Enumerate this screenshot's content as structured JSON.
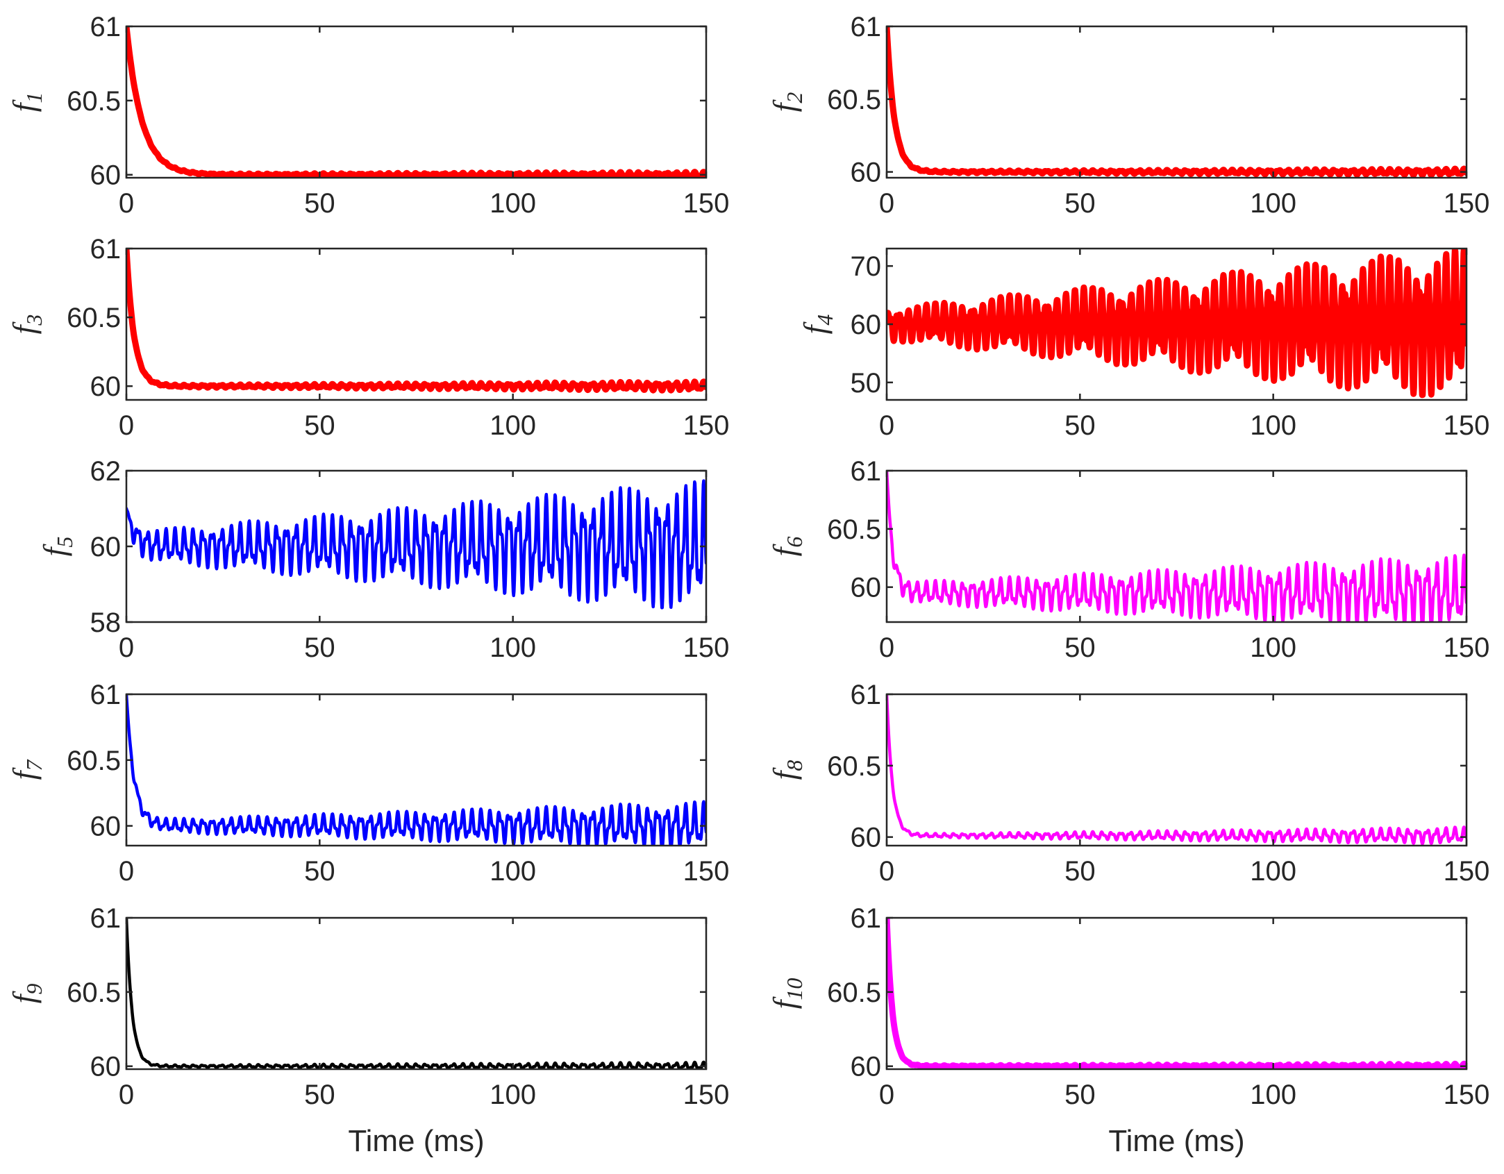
{
  "chart_data": [
    {
      "type": "line",
      "ylabel": "f",
      "ylabel_subscript": "1",
      "color": "#ff0000",
      "line": "thick",
      "xlim": [
        0,
        150
      ],
      "ylim": [
        59.98,
        61.0
      ],
      "xticks": [
        "0",
        "50",
        "100",
        "150"
      ],
      "yticks": [
        "60",
        "60.5",
        "61"
      ],
      "ytick_values": [
        60,
        60.5,
        61
      ],
      "xlabel": "",
      "signal": {
        "start": 61.0,
        "base": 60.0,
        "decay_ms": 4,
        "amp_start": 0.004,
        "amp_end": 0.018
      }
    },
    {
      "type": "line",
      "ylabel": "f",
      "ylabel_subscript": "2",
      "color": "#ff0000",
      "line": "thick",
      "xlim": [
        0,
        150
      ],
      "ylim": [
        59.96,
        61.0
      ],
      "xticks": [
        "0",
        "50",
        "100",
        "150"
      ],
      "yticks": [
        "60",
        "60.5",
        "61"
      ],
      "ytick_values": [
        60,
        60.5,
        61
      ],
      "xlabel": "",
      "signal": {
        "start": 61.0,
        "base": 60.0,
        "decay_ms": 2,
        "amp_start": 0.005,
        "amp_end": 0.02
      }
    },
    {
      "type": "line",
      "ylabel": "f",
      "ylabel_subscript": "3",
      "color": "#ff0000",
      "line": "thick",
      "xlim": [
        0,
        150
      ],
      "ylim": [
        59.9,
        61.0
      ],
      "xticks": [
        "0",
        "50",
        "100",
        "150"
      ],
      "yticks": [
        "60",
        "60.5",
        "61"
      ],
      "ytick_values": [
        60,
        60.5,
        61
      ],
      "xlabel": "",
      "signal": {
        "start": 61.0,
        "base": 60.0,
        "decay_ms": 2,
        "amp_start": 0.006,
        "amp_end": 0.03
      }
    },
    {
      "type": "line",
      "ylabel": "f",
      "ylabel_subscript": "4",
      "color": "#ff0000",
      "line": "thick",
      "xlim": [
        0,
        150
      ],
      "ylim": [
        47,
        73
      ],
      "xticks": [
        "0",
        "50",
        "100",
        "150"
      ],
      "yticks": [
        "50",
        "60",
        "70"
      ],
      "ytick_values": [
        50,
        60,
        70
      ],
      "xlabel": "",
      "signal": {
        "start": 60.0,
        "base": 60.0,
        "decay_ms": 0,
        "amp_start": 2.5,
        "amp_end": 12
      }
    },
    {
      "type": "line",
      "ylabel": "f",
      "ylabel_subscript": "5",
      "color": "#0000ff",
      "line": "thin",
      "xlim": [
        0,
        150
      ],
      "ylim": [
        58,
        62
      ],
      "xticks": [
        "0",
        "50",
        "100",
        "150"
      ],
      "yticks": [
        "58",
        "60",
        "62"
      ],
      "ytick_values": [
        58,
        60,
        62
      ],
      "xlabel": "",
      "signal": {
        "start": 61.0,
        "base": 60.0,
        "decay_ms": 2,
        "amp_start": 0.35,
        "amp_end": 1.6
      }
    },
    {
      "type": "line",
      "ylabel": "f",
      "ylabel_subscript": "6",
      "color": "#ff00ff",
      "line": "thin",
      "xlim": [
        0,
        150
      ],
      "ylim": [
        59.7,
        61.0
      ],
      "xticks": [
        "0",
        "50",
        "100",
        "150"
      ],
      "yticks": [
        "60",
        "60.5",
        "61"
      ],
      "ytick_values": [
        60,
        60.5,
        61
      ],
      "xlabel": "",
      "signal": {
        "start": 61.0,
        "base": 59.95,
        "decay_ms": 1.5,
        "amp_start": 0.08,
        "amp_end": 0.3
      }
    },
    {
      "type": "line",
      "ylabel": "f",
      "ylabel_subscript": "7",
      "color": "#0000ff",
      "line": "thin",
      "xlim": [
        0,
        150
      ],
      "ylim": [
        59.85,
        61.0
      ],
      "xticks": [
        "0",
        "50",
        "100",
        "150"
      ],
      "yticks": [
        "60",
        "60.5",
        "61"
      ],
      "ytick_values": [
        60,
        60.5,
        61
      ],
      "xlabel": "",
      "signal": {
        "start": 61.0,
        "base": 60.0,
        "decay_ms": 2,
        "amp_start": 0.04,
        "amp_end": 0.17
      }
    },
    {
      "type": "line",
      "ylabel": "f",
      "ylabel_subscript": "8",
      "color": "#ff00ff",
      "line": "thin",
      "xlim": [
        0,
        150
      ],
      "ylim": [
        59.94,
        61.0
      ],
      "xticks": [
        "0",
        "50",
        "100",
        "150"
      ],
      "yticks": [
        "60",
        "60.5",
        "61"
      ],
      "ytick_values": [
        60,
        60.5,
        61
      ],
      "xlabel": "",
      "signal": {
        "start": 61.0,
        "base": 60.01,
        "decay_ms": 1.5,
        "amp_start": 0.01,
        "amp_end": 0.055
      }
    },
    {
      "type": "line",
      "ylabel": "f",
      "ylabel_subscript": "9",
      "color": "#000000",
      "line": "thin",
      "xlim": [
        0,
        150
      ],
      "ylim": [
        59.98,
        61.0
      ],
      "xticks": [
        "0",
        "50",
        "100",
        "150"
      ],
      "yticks": [
        "60",
        "60.5",
        "61"
      ],
      "ytick_values": [
        60,
        60.5,
        61
      ],
      "xlabel": "Time (ms)",
      "signal": {
        "start": 61.0,
        "base": 60.0,
        "decay_ms": 1.5,
        "amp_start": 0.006,
        "amp_end": 0.025
      }
    },
    {
      "type": "line",
      "ylabel": "f",
      "ylabel_subscript": "10",
      "color": "#ff00ff",
      "line": "thick",
      "xlim": [
        0,
        150
      ],
      "ylim": [
        59.98,
        61.0
      ],
      "xticks": [
        "0",
        "50",
        "100",
        "150"
      ],
      "yticks": [
        "60",
        "60.5",
        "61"
      ],
      "ytick_values": [
        60,
        60.5,
        61
      ],
      "xlabel": "Time (ms)",
      "signal": {
        "start": 61.0,
        "base": 60.0,
        "decay_ms": 1.5,
        "amp_start": 0.004,
        "amp_end": 0.015
      }
    }
  ]
}
